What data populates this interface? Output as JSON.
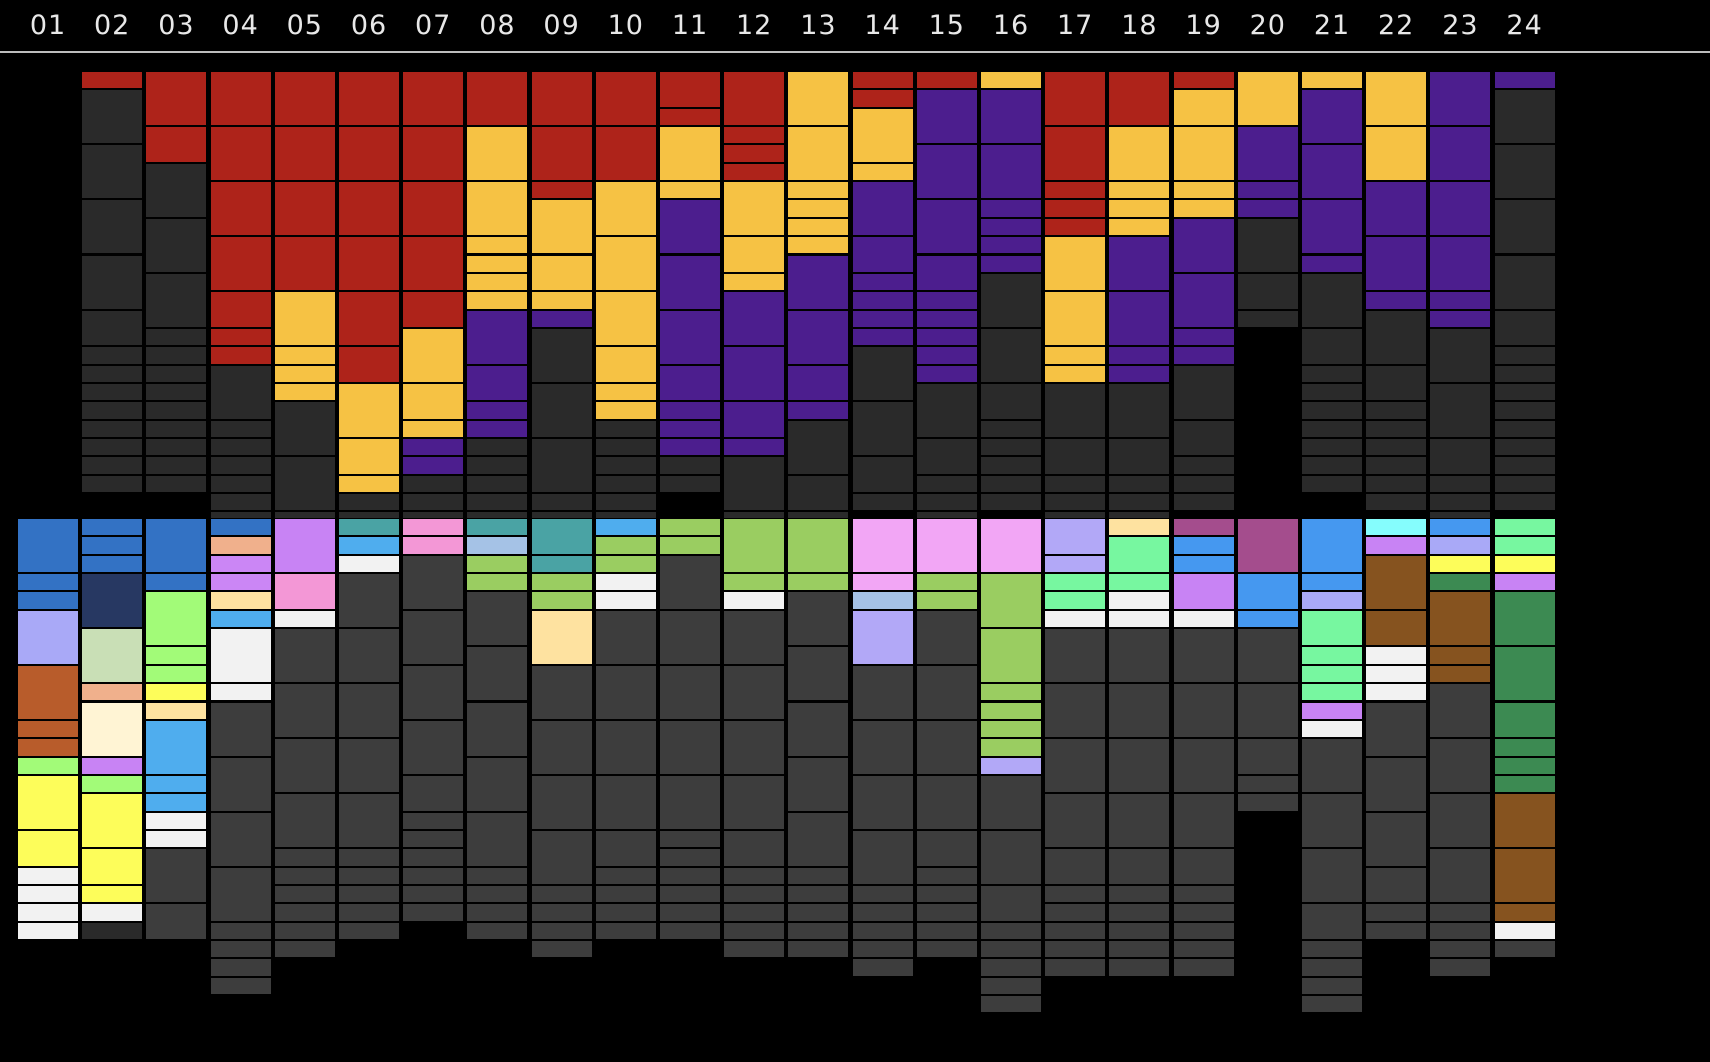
{
  "columns": [
    "01",
    "02",
    "03",
    "04",
    "05",
    "06",
    "07",
    "08",
    "09",
    "10",
    "11",
    "12",
    "13",
    "14",
    "15",
    "16",
    "17",
    "18",
    "19",
    "20",
    "21",
    "22",
    "23",
    "24"
  ],
  "colors": {
    "R": "#ae231a",
    "Y": "#f6c244",
    "P": "#4c1e8e",
    "D": "#2a2a2a",
    "G": "#3d3d3d",
    "B": "#3372c4",
    "N": "#273862",
    "L": "#a9a9f7",
    "O": "#b85c2b",
    "V": "#a2fb78",
    "X": "#fdfd5a",
    "W": "#f2f2f2",
    "S": "#c9dfb6",
    "E": "#f0b08c",
    "C": "#fff4d4",
    "K": "#c883f4",
    "F": "#fee2a0",
    "A": "#4fadee",
    "M": "#cb86f5",
    "I": "#f397d6",
    "T": "#4aa3a4",
    "Q": "#a5c2e6",
    "H": "#9acd61",
    "U": "#f2a6f5",
    "J": "#b2a8f7",
    "Z": "#77f7a0",
    "g": "#a44d8d",
    "b": "#4598f0",
    "c": "#85fdfd",
    "n": "#86531f",
    "e": "#3c8a52"
  },
  "top_grid": [
    [],
    [
      "R",
      1,
      "D",
      3,
      "D",
      3,
      "D",
      3,
      "D",
      3,
      "D",
      2,
      "D",
      1,
      "D",
      1,
      "D",
      1,
      "D",
      1,
      "D",
      1,
      "D",
      1,
      "D",
      1,
      "D",
      1
    ],
    [
      "R",
      3,
      "R",
      2,
      "D",
      3,
      "D",
      3,
      "D",
      3,
      "D",
      1,
      "D",
      1,
      "D",
      1,
      "D",
      1,
      "D",
      1,
      "D",
      1,
      "D",
      1,
      "D",
      1,
      "D",
      1
    ],
    [
      "R",
      3,
      "R",
      3,
      "R",
      3,
      "R",
      3,
      "R",
      2,
      "R",
      1,
      "R",
      1,
      "D",
      3,
      "D",
      1,
      "D",
      1,
      "D",
      1,
      "D",
      1,
      "D",
      1,
      "D",
      1,
      "D",
      1,
      "D",
      1
    ],
    [
      "R",
      3,
      "R",
      3,
      "R",
      3,
      "R",
      3,
      "Y",
      3,
      "Y",
      1,
      "Y",
      1,
      "Y",
      1,
      "D",
      3,
      "D",
      3,
      "D",
      2
    ],
    [
      "R",
      3,
      "R",
      3,
      "R",
      3,
      "R",
      3,
      "R",
      3,
      "R",
      2,
      "Y",
      3,
      "Y",
      2,
      "Y",
      1,
      "D",
      1,
      "D",
      1,
      "D",
      1
    ],
    [
      "R",
      3,
      "R",
      3,
      "R",
      3,
      "R",
      3,
      "R",
      2,
      "Y",
      3,
      "Y",
      2,
      "Y",
      1,
      "P",
      1,
      "P",
      1,
      "D",
      1,
      "D",
      1,
      "D",
      1
    ],
    [
      "R",
      3,
      "Y",
      3,
      "Y",
      3,
      "Y",
      1,
      "Y",
      1,
      "Y",
      1,
      "Y",
      1,
      "P",
      3,
      "P",
      2,
      "P",
      1,
      "P",
      1,
      "D",
      1,
      "D",
      1,
      "D",
      1,
      "D",
      1,
      "D",
      1
    ],
    [
      "R",
      3,
      "R",
      3,
      "R",
      1,
      "Y",
      3,
      "Y",
      2,
      "Y",
      1,
      "P",
      1,
      "D",
      3,
      "D",
      3,
      "D",
      3,
      "D",
      1,
      "D",
      1,
      "D",
      1
    ],
    [
      "R",
      3,
      "R",
      3,
      "Y",
      3,
      "Y",
      3,
      "Y",
      3,
      "Y",
      2,
      "Y",
      1,
      "Y",
      1,
      "D",
      1,
      "D",
      1,
      "D",
      1,
      "D",
      1,
      "D",
      1,
      "D",
      1,
      "D",
      1
    ],
    [
      "R",
      2,
      "R",
      1,
      "Y",
      3,
      "Y",
      1,
      "P",
      3,
      "P",
      3,
      "P",
      3,
      "P",
      2,
      "P",
      1,
      "P",
      1,
      "P",
      1,
      "D",
      1,
      "D",
      1
    ],
    [
      "R",
      3,
      "R",
      1,
      "R",
      1,
      "R",
      1,
      "Y",
      3,
      "Y",
      2,
      "Y",
      1,
      "P",
      3,
      "P",
      3,
      "P",
      2,
      "P",
      1,
      "D",
      3,
      "D",
      2,
      "D",
      1
    ],
    [
      "Y",
      3,
      "Y",
      3,
      "Y",
      1,
      "Y",
      1,
      "Y",
      1,
      "Y",
      1,
      "P",
      3,
      "P",
      3,
      "P",
      2,
      "P",
      1,
      "D",
      3,
      "D",
      2,
      "D",
      1
    ],
    [
      "R",
      1,
      "R",
      1,
      "Y",
      3,
      "Y",
      1,
      "P",
      3,
      "P",
      2,
      "P",
      1,
      "P",
      1,
      "P",
      1,
      "P",
      1,
      "D",
      3,
      "D",
      3,
      "D",
      2,
      "D",
      1
    ],
    [
      "R",
      1,
      "P",
      3,
      "P",
      3,
      "P",
      3,
      "P",
      2,
      "P",
      1,
      "P",
      1,
      "P",
      1,
      "P",
      1,
      "P",
      1,
      "D",
      3,
      "D",
      2,
      "D",
      1,
      "D",
      1,
      "D",
      1
    ],
    [
      "Y",
      1,
      "P",
      3,
      "P",
      3,
      "P",
      1,
      "P",
      1,
      "P",
      1,
      "P",
      1,
      "D",
      3,
      "D",
      3,
      "D",
      2,
      "D",
      1,
      "D",
      1,
      "D",
      1,
      "D",
      1,
      "D",
      1
    ],
    [
      "R",
      3,
      "R",
      3,
      "R",
      1,
      "R",
      1,
      "R",
      1,
      "Y",
      3,
      "Y",
      3,
      "Y",
      1,
      "Y",
      1,
      "D",
      3,
      "D",
      2,
      "D",
      1,
      "D",
      1,
      "D",
      1
    ],
    [
      "R",
      3,
      "Y",
      3,
      "Y",
      1,
      "Y",
      1,
      "Y",
      1,
      "P",
      3,
      "P",
      3,
      "P",
      1,
      "P",
      1,
      "D",
      3,
      "D",
      2,
      "D",
      1,
      "D",
      1,
      "D",
      1
    ],
    [
      "R",
      1,
      "Y",
      2,
      "Y",
      3,
      "Y",
      1,
      "Y",
      1,
      "P",
      3,
      "P",
      3,
      "P",
      1,
      "P",
      1,
      "D",
      3,
      "D",
      2,
      "D",
      1,
      "D",
      1,
      "D",
      1
    ],
    [
      "Y",
      3,
      "P",
      3,
      "P",
      1,
      "P",
      1,
      "D",
      3,
      "D",
      2,
      "D",
      1
    ],
    [
      "Y",
      1,
      "P",
      3,
      "P",
      3,
      "P",
      3,
      "P",
      1,
      "D",
      3,
      "D",
      2,
      "D",
      1,
      "D",
      1,
      "D",
      1,
      "D",
      1,
      "D",
      1,
      "D",
      1,
      "D",
      1
    ],
    [
      "Y",
      3,
      "Y",
      3,
      "P",
      3,
      "P",
      3,
      "P",
      1,
      "D",
      3,
      "D",
      2,
      "D",
      1,
      "D",
      1,
      "D",
      1,
      "D",
      1,
      "D",
      1,
      "D",
      1
    ],
    [
      "P",
      3,
      "P",
      3,
      "P",
      3,
      "P",
      3,
      "P",
      1,
      "P",
      1,
      "D",
      3,
      "D",
      3,
      "D",
      2,
      "D",
      1,
      "D",
      1,
      "D",
      1,
      "D",
      1
    ],
    [
      "P",
      1,
      "D",
      3,
      "D",
      3,
      "D",
      3,
      "D",
      3,
      "D",
      2,
      "D",
      1,
      "D",
      1,
      "D",
      1,
      "D",
      1,
      "D",
      1,
      "D",
      1,
      "D",
      1,
      "D",
      1,
      "D",
      1
    ]
  ],
  "bottom_grid": [
    [
      "B",
      3,
      "B",
      1,
      "B",
      1,
      "L",
      3,
      "O",
      3,
      "O",
      1,
      "O",
      1,
      "V",
      1,
      "X",
      3,
      "X",
      2,
      "W",
      1,
      "W",
      1,
      "W",
      1,
      "W",
      1
    ],
    [
      "B",
      1,
      "B",
      1,
      "B",
      1,
      "N",
      3,
      "S",
      3,
      "E",
      1,
      "C",
      3,
      "K",
      1,
      "V",
      1,
      "X",
      3,
      "X",
      2,
      "X",
      1,
      "W",
      1,
      "D",
      1
    ],
    [
      "B",
      3,
      "B",
      1,
      "V",
      3,
      "V",
      1,
      "V",
      1,
      "X",
      1,
      "F",
      1,
      "A",
      3,
      "A",
      1,
      "A",
      1,
      "W",
      1,
      "W",
      1,
      "G",
      3,
      "G",
      2
    ],
    [
      "B",
      1,
      "E",
      1,
      "M",
      1,
      "M",
      1,
      "F",
      1,
      "A",
      1,
      "W",
      3,
      "W",
      1,
      "G",
      3,
      "G",
      3,
      "G",
      3,
      "G",
      3,
      "G",
      1,
      "G",
      1,
      "G",
      1,
      "G",
      1
    ],
    [
      "K",
      3,
      "I",
      2,
      "W",
      1,
      "G",
      3,
      "G",
      3,
      "G",
      3,
      "G",
      3,
      "G",
      1,
      "G",
      1,
      "G",
      1,
      "G",
      1,
      "G",
      1,
      "G",
      1
    ],
    [
      "T",
      1,
      "A",
      1,
      "W",
      1,
      "G",
      3,
      "G",
      3,
      "G",
      3,
      "G",
      3,
      "G",
      3,
      "G",
      1,
      "G",
      1,
      "G",
      1,
      "G",
      1,
      "G",
      1
    ],
    [
      "I",
      1,
      "I",
      1,
      "G",
      3,
      "G",
      3,
      "G",
      3,
      "G",
      3,
      "G",
      2,
      "G",
      1,
      "G",
      1,
      "G",
      1,
      "G",
      1,
      "G",
      1,
      "G",
      1
    ],
    [
      "T",
      1,
      "Q",
      1,
      "H",
      1,
      "H",
      1,
      "G",
      3,
      "G",
      3,
      "G",
      3,
      "G",
      3,
      "G",
      3,
      "G",
      1,
      "G",
      1,
      "G",
      1,
      "G",
      1
    ],
    [
      "T",
      2,
      "T",
      1,
      "H",
      1,
      "H",
      1,
      "F",
      3,
      "G",
      3,
      "G",
      3,
      "G",
      3,
      "G",
      3,
      "G",
      1,
      "G",
      1,
      "G",
      1,
      "G",
      1
    ],
    [
      "A",
      1,
      "H",
      1,
      "H",
      1,
      "W",
      1,
      "W",
      1,
      "G",
      3,
      "G",
      3,
      "G",
      3,
      "G",
      3,
      "G",
      2,
      "G",
      1,
      "G",
      1,
      "G",
      1,
      "G",
      1
    ],
    [
      "H",
      1,
      "H",
      1,
      "G",
      3,
      "G",
      3,
      "G",
      3,
      "G",
      3,
      "G",
      3,
      "G",
      1,
      "G",
      1,
      "G",
      1,
      "G",
      1,
      "G",
      1,
      "G",
      1
    ],
    [
      "H",
      3,
      "H",
      1,
      "W",
      1,
      "G",
      3,
      "G",
      3,
      "G",
      3,
      "G",
      3,
      "G",
      2,
      "G",
      1,
      "G",
      1,
      "G",
      1,
      "G",
      1,
      "G",
      1
    ],
    [
      "H",
      3,
      "H",
      1,
      "G",
      3,
      "G",
      3,
      "G",
      3,
      "G",
      3,
      "G",
      3,
      "G",
      1,
      "G",
      1,
      "G",
      1,
      "G",
      1,
      "G",
      1
    ],
    [
      "U",
      3,
      "U",
      1,
      "Q",
      1,
      "J",
      3,
      "G",
      3,
      "G",
      3,
      "G",
      3,
      "G",
      3,
      "G",
      1,
      "G",
      1,
      "G",
      1,
      "G",
      1,
      "G",
      1
    ],
    [
      "U",
      3,
      "H",
      1,
      "H",
      1,
      "G",
      3,
      "G",
      3,
      "G",
      3,
      "G",
      3,
      "G",
      2,
      "G",
      1,
      "G",
      1,
      "G",
      1,
      "G",
      1,
      "G",
      1
    ],
    [
      "U",
      3,
      "H",
      3,
      "H",
      3,
      "H",
      1,
      "H",
      1,
      "H",
      1,
      "H",
      1,
      "J",
      1,
      "G",
      3,
      "G",
      3,
      "G",
      2,
      "G",
      1,
      "G",
      1,
      "G",
      1,
      "G",
      1,
      "G",
      1
    ],
    [
      "J",
      2,
      "J",
      1,
      "Z",
      1,
      "Z",
      1,
      "W",
      1,
      "G",
      3,
      "G",
      3,
      "G",
      3,
      "G",
      3,
      "G",
      2,
      "G",
      1,
      "G",
      1,
      "G",
      1,
      "G",
      1,
      "G",
      1
    ],
    [
      "F",
      1,
      "Z",
      2,
      "Z",
      1,
      "W",
      1,
      "W",
      1,
      "G",
      3,
      "G",
      3,
      "G",
      3,
      "G",
      3,
      "G",
      2,
      "G",
      1,
      "G",
      1,
      "G",
      1,
      "G",
      1,
      "G",
      1
    ],
    [
      "g",
      1,
      "b",
      1,
      "b",
      1,
      "K",
      2,
      "W",
      1,
      "G",
      3,
      "G",
      3,
      "G",
      3,
      "G",
      3,
      "G",
      2,
      "G",
      1,
      "G",
      1,
      "G",
      1,
      "G",
      1,
      "G",
      1
    ],
    [
      "g",
      3,
      "b",
      2,
      "b",
      1,
      "G",
      3,
      "G",
      3,
      "G",
      2,
      "G",
      1,
      "G",
      1
    ],
    [
      "b",
      3,
      "b",
      1,
      "L",
      1,
      "Z",
      2,
      "Z",
      1,
      "Z",
      1,
      "Z",
      1,
      "K",
      1,
      "W",
      1,
      "G",
      3,
      "G",
      3,
      "G",
      3,
      "G",
      2,
      "G",
      1,
      "G",
      1,
      "G",
      1,
      "G",
      1
    ],
    [
      "c",
      1,
      "K",
      1,
      "n",
      3,
      "n",
      2,
      "W",
      1,
      "W",
      1,
      "W",
      1,
      "G",
      3,
      "G",
      3,
      "G",
      3,
      "G",
      2,
      "G",
      1,
      "G",
      1
    ],
    [
      "b",
      1,
      "L",
      1,
      "X",
      1,
      "e",
      1,
      "n",
      3,
      "n",
      1,
      "n",
      1,
      "G",
      3,
      "G",
      3,
      "G",
      3,
      "G",
      3,
      "G",
      1,
      "G",
      1,
      "G",
      1,
      "G",
      1
    ],
    [
      "Z",
      1,
      "Z",
      1,
      "X",
      1,
      "K",
      1,
      "e",
      3,
      "e",
      3,
      "e",
      2,
      "e",
      1,
      "e",
      1,
      "e",
      1,
      "n",
      3,
      "n",
      3,
      "n",
      1,
      "W",
      1,
      "G",
      1
    ]
  ]
}
